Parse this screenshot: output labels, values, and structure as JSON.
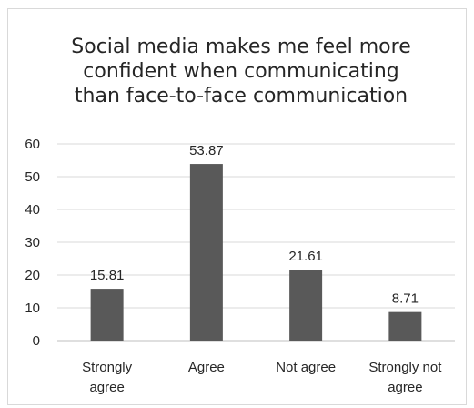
{
  "chart_data": {
    "type": "bar",
    "title": [
      "Social media makes me feel more",
      "confident when communicating",
      "than face-to-face communication"
    ],
    "categories": [
      [
        "Strongly",
        "agree"
      ],
      [
        "Agree"
      ],
      [
        "Not  agree"
      ],
      [
        "Strongly not",
        "agree"
      ]
    ],
    "values": [
      15.81,
      53.87,
      21.61,
      8.71
    ],
    "data_labels": [
      "15.81",
      "53.87",
      "21.61",
      "8.71"
    ],
    "y_ticks": [
      "0",
      "10",
      "20",
      "30",
      "40",
      "50",
      "60"
    ],
    "ylim": [
      0,
      60
    ],
    "grid": true,
    "legend": "none",
    "bar_color": "#595959",
    "grid_color": "#d9d9d9"
  }
}
